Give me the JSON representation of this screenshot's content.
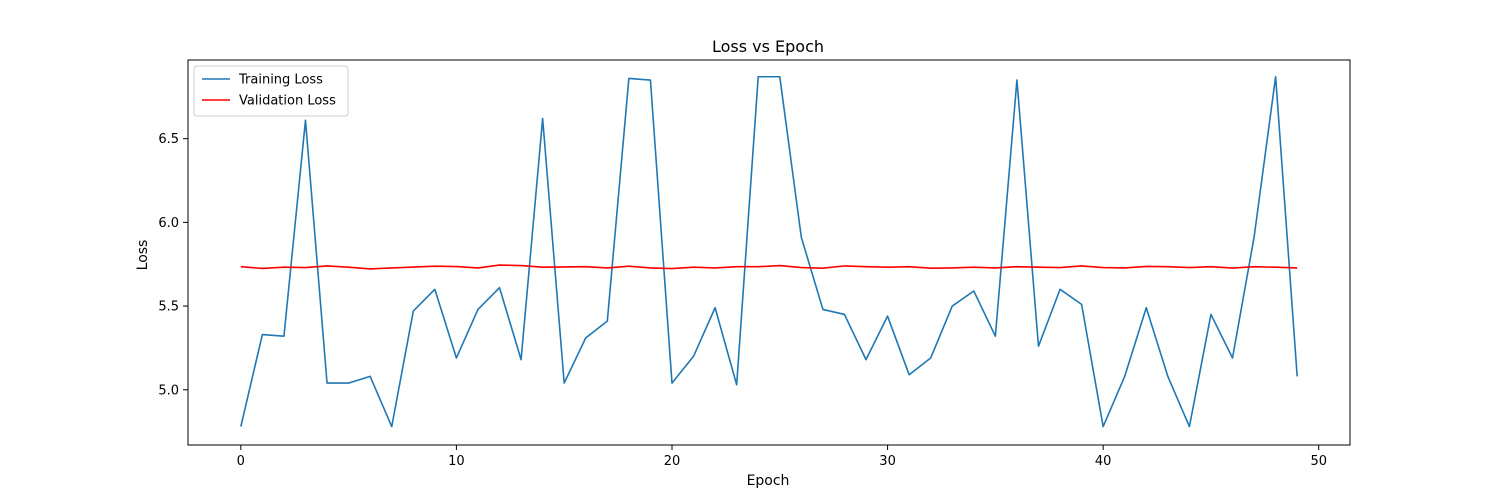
{
  "chart_data": {
    "type": "line",
    "title": "Loss vs Epoch",
    "xlabel": "Epoch",
    "ylabel": "Loss",
    "xlim": [
      -2.45,
      51.45
    ],
    "ylim": [
      4.67,
      6.97
    ],
    "xticks": [
      0,
      10,
      20,
      30,
      40,
      50
    ],
    "yticks": [
      5.0,
      5.5,
      6.0,
      6.5
    ],
    "ytick_labels": [
      "5.0",
      "5.5",
      "6.0",
      "6.5"
    ],
    "grid": false,
    "legend_position": "top-left",
    "x": [
      0,
      1,
      2,
      3,
      4,
      5,
      6,
      7,
      8,
      9,
      10,
      11,
      12,
      13,
      14,
      15,
      16,
      17,
      18,
      19,
      20,
      21,
      22,
      23,
      24,
      25,
      26,
      27,
      28,
      29,
      30,
      31,
      32,
      33,
      34,
      35,
      36,
      37,
      38,
      39,
      40,
      41,
      42,
      43,
      44,
      45,
      46,
      47,
      48,
      49
    ],
    "series": [
      {
        "name": "Training Loss",
        "color": "#1f77b4",
        "values": [
          4.78,
          5.33,
          5.32,
          6.61,
          5.04,
          5.04,
          5.08,
          4.78,
          5.47,
          5.6,
          5.19,
          5.48,
          5.61,
          5.18,
          6.62,
          5.04,
          5.31,
          5.41,
          6.86,
          6.85,
          5.04,
          5.2,
          5.49,
          5.03,
          6.87,
          6.87,
          5.91,
          5.48,
          5.45,
          5.18,
          5.44,
          5.09,
          5.19,
          5.5,
          5.59,
          5.32,
          6.85,
          5.26,
          5.6,
          5.51,
          4.78,
          5.08,
          5.49,
          5.08,
          4.78,
          5.45,
          5.19,
          5.91,
          6.87,
          5.08
        ]
      },
      {
        "name": "Validation Loss",
        "color": "#ff0000",
        "values": [
          5.735,
          5.725,
          5.732,
          5.73,
          5.74,
          5.732,
          5.722,
          5.728,
          5.733,
          5.738,
          5.736,
          5.728,
          5.745,
          5.742,
          5.732,
          5.734,
          5.735,
          5.728,
          5.738,
          5.728,
          5.724,
          5.732,
          5.728,
          5.735,
          5.735,
          5.742,
          5.73,
          5.726,
          5.74,
          5.735,
          5.732,
          5.735,
          5.726,
          5.728,
          5.732,
          5.728,
          5.735,
          5.732,
          5.73,
          5.74,
          5.73,
          5.728,
          5.737,
          5.735,
          5.73,
          5.735,
          5.727,
          5.735,
          5.732,
          5.728
        ]
      }
    ]
  }
}
